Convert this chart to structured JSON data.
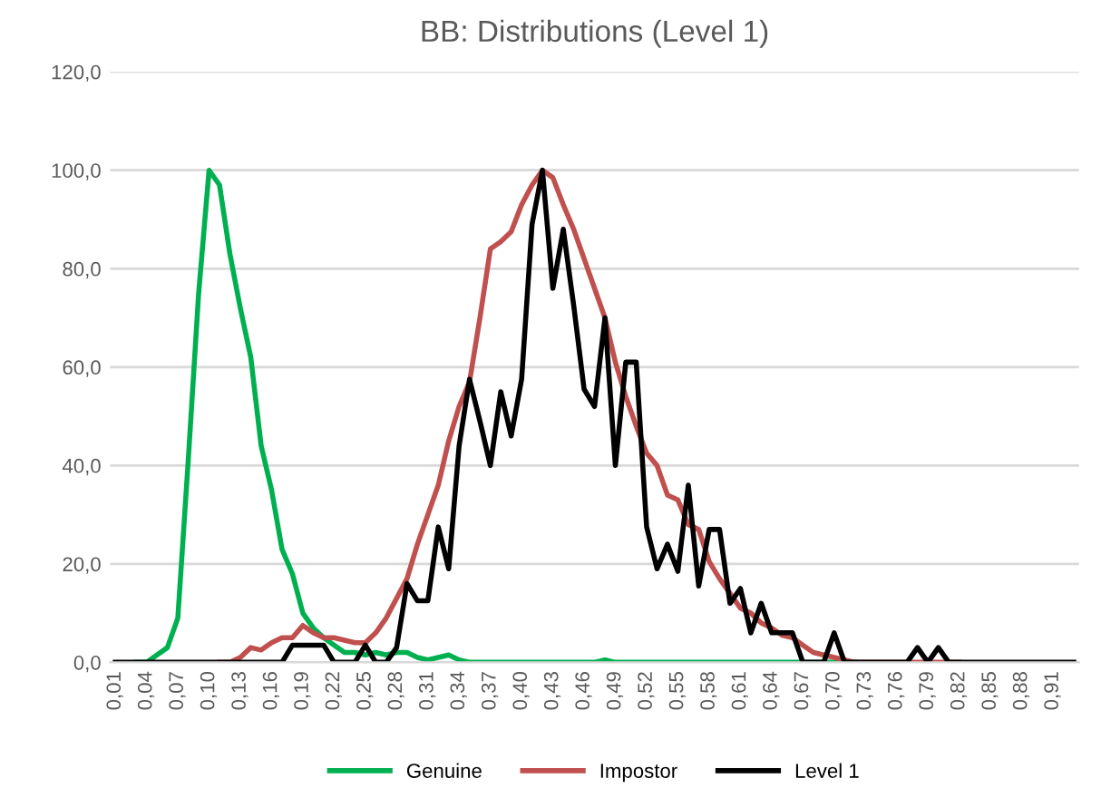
{
  "chart_data": {
    "type": "line",
    "title": "BB: Distributions (Level 1)",
    "categories": [
      "0,01",
      null,
      null,
      "0,04",
      null,
      null,
      "0,07",
      null,
      null,
      "0,10",
      null,
      null,
      "0,13",
      null,
      null,
      "0,16",
      null,
      null,
      "0,19",
      null,
      null,
      "0,22",
      null,
      null,
      "0,25",
      null,
      null,
      "0,28",
      null,
      null,
      "0,31",
      null,
      null,
      "0,34",
      null,
      null,
      "0,37",
      null,
      null,
      "0,40",
      null,
      null,
      "0,43",
      null,
      null,
      "0,46",
      null,
      null,
      "0,49",
      null,
      null,
      "0,52",
      null,
      null,
      "0,55",
      null,
      null,
      "0,58",
      null,
      null,
      "0,61",
      null,
      null,
      "0,64",
      null,
      null,
      "0,67",
      null,
      null,
      "0,70",
      null,
      null,
      "0,73",
      null,
      null,
      "0,76",
      null,
      null,
      "0,79",
      null,
      null,
      "0,82",
      null,
      null,
      "0,85",
      null,
      null,
      "0,88",
      null,
      null,
      "0,91",
      null,
      null
    ],
    "series": [
      {
        "name": "Genuine",
        "color": "#00b050",
        "values": [
          null,
          null,
          0,
          0,
          1.5,
          3,
          9,
          41,
          75,
          100,
          97,
          83,
          72,
          62,
          44,
          35,
          23,
          18,
          10,
          7,
          5,
          3.5,
          2,
          2,
          1.5,
          2,
          1.5,
          2,
          2,
          1,
          0.5,
          1,
          1.5,
          0.5,
          0,
          0,
          0,
          0,
          0,
          0,
          0,
          0,
          0,
          0,
          0,
          0,
          0,
          0.5,
          0,
          0,
          0,
          0,
          0,
          0,
          0,
          0,
          0,
          0,
          0,
          0,
          0,
          0,
          0,
          0,
          0,
          0,
          0,
          0,
          0,
          0,
          0,
          0,
          null,
          null,
          null,
          null,
          null,
          null,
          null,
          null,
          null,
          null,
          null,
          null,
          null,
          null,
          null,
          null,
          null,
          null,
          null,
          null,
          null
        ]
      },
      {
        "name": "Impostor",
        "color": "#c0504d",
        "values": [
          null,
          null,
          null,
          null,
          null,
          null,
          null,
          null,
          null,
          null,
          0,
          0,
          1,
          3,
          2.5,
          4,
          5,
          5,
          7.5,
          6,
          5,
          5,
          4.5,
          4,
          4,
          6,
          9,
          13,
          17,
          24,
          30,
          36,
          45,
          52,
          57,
          70,
          84,
          85.5,
          87.5,
          93,
          97,
          100,
          98.5,
          93,
          88,
          82,
          76,
          70,
          61,
          54,
          48,
          42.5,
          40,
          34,
          33,
          28,
          27,
          20.5,
          17,
          14,
          11,
          10,
          8,
          7,
          5.5,
          5,
          3.5,
          2,
          1.5,
          1,
          0.5,
          0,
          0,
          0,
          0,
          0,
          0,
          0,
          0,
          0,
          0,
          0,
          null,
          null,
          null,
          null,
          null,
          null,
          null,
          null,
          null,
          null,
          null
        ]
      },
      {
        "name": "Level 1",
        "color": "#000000",
        "values": [
          0,
          0,
          0,
          0,
          0,
          0,
          0,
          0,
          0,
          0,
          0,
          0,
          0,
          0,
          0,
          0,
          0,
          3.5,
          3.5,
          3.5,
          3.5,
          0,
          0,
          0,
          3.5,
          0,
          0,
          3,
          16,
          12.5,
          12.5,
          27.5,
          19,
          44,
          57.5,
          49,
          40,
          55,
          46,
          57.5,
          89,
          100,
          76,
          88,
          72.5,
          55.5,
          52,
          70,
          40,
          61,
          61,
          27.5,
          19,
          24,
          18.5,
          36,
          15.5,
          27,
          27,
          12,
          15,
          6,
          12,
          6,
          6,
          6,
          0,
          0,
          0,
          6,
          0,
          0,
          0,
          0,
          0,
          0,
          0,
          3,
          0,
          3,
          0,
          0,
          0,
          0,
          0,
          0,
          0,
          0,
          0,
          0,
          0,
          0,
          0
        ]
      }
    ],
    "ylim": [
      0,
      120
    ],
    "yticks": [
      {
        "value": 0,
        "label": "0,0"
      },
      {
        "value": 20,
        "label": "20,0"
      },
      {
        "value": 40,
        "label": "40,0"
      },
      {
        "value": 60,
        "label": "60,0"
      },
      {
        "value": 80,
        "label": "80,0"
      },
      {
        "value": 100,
        "label": "100,0"
      },
      {
        "value": 120,
        "label": "120,0"
      }
    ],
    "grid": "y",
    "legend": "bottom",
    "marker": "none",
    "line_style": "solid"
  }
}
